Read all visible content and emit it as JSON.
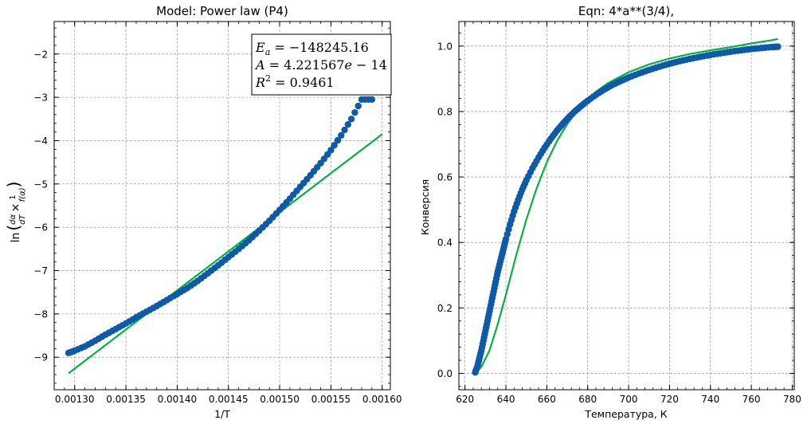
{
  "colors": {
    "points": "#0d5aa7",
    "fit": "#00b341",
    "grid": "#8a8a8a"
  },
  "chart_data": [
    {
      "type": "scatter",
      "title": "Model: Power law (P4)",
      "xlabel": "1/T",
      "ylabel_tex": "ln(dα/dT × 1/f(α))",
      "xlim": [
        0.00128,
        0.001608
      ],
      "ylim": [
        -9.75,
        -1.25
      ],
      "xticks": [
        0.0013,
        0.00135,
        0.0014,
        0.00145,
        0.0015,
        0.00155,
        0.0016
      ],
      "xtick_labels": [
        "0.00130",
        "0.00135",
        "0.00140",
        "0.00145",
        "0.00150",
        "0.00155",
        "0.00160"
      ],
      "yticks": [
        -9,
        -8,
        -7,
        -6,
        -5,
        -4,
        -3,
        -2
      ],
      "ytick_labels": [
        "−9",
        "−8",
        "−7",
        "−6",
        "−5",
        "−4",
        "−3",
        "−2"
      ],
      "grid": true,
      "annotation": {
        "lines": [
          "E_a = −148245.16",
          "A = 4.221567e−14",
          "R^2 = 0.9461"
        ],
        "placement": "top-right"
      },
      "series": [
        {
          "kind": "points",
          "x": [
            0.001294,
            0.0013,
            0.00131,
            0.00132,
            0.00133,
            0.00134,
            0.00135,
            0.00136,
            0.00137,
            0.00138,
            0.00139,
            0.0014,
            0.00141,
            0.00142,
            0.00143,
            0.00144,
            0.00145,
            0.00146,
            0.00147,
            0.00148,
            0.00149,
            0.0015,
            0.00151,
            0.00152,
            0.00153,
            0.00154,
            0.00155,
            0.00156,
            0.00157,
            0.00158,
            0.00159
          ],
          "y": [
            -8.9,
            -8.85,
            -8.75,
            -8.62,
            -8.48,
            -8.35,
            -8.22,
            -8.08,
            -7.95,
            -7.82,
            -7.68,
            -7.54,
            -7.4,
            -7.24,
            -7.06,
            -6.88,
            -6.69,
            -6.5,
            -6.3,
            -6.08,
            -5.85,
            -5.6,
            -5.34,
            -5.07,
            -4.8,
            -4.52,
            -4.22,
            -3.88,
            -3.5,
            -3.05,
            -3.05
          ]
        },
        {
          "kind": "line",
          "x": [
            0.001294,
            0.0016
          ],
          "y": [
            -9.37,
            -3.85
          ]
        }
      ]
    },
    {
      "type": "scatter",
      "title": "Eqn: 4*a**(3/4),",
      "xlabel": "Температура, К",
      "ylabel": "Конверсия",
      "xlim": [
        617,
        781
      ],
      "ylim": [
        -0.05,
        1.075
      ],
      "xticks": [
        620,
        640,
        660,
        680,
        700,
        720,
        740,
        760,
        780
      ],
      "xtick_labels": [
        "620",
        "640",
        "660",
        "680",
        "700",
        "720",
        "740",
        "760",
        "780"
      ],
      "yticks": [
        0.0,
        0.2,
        0.4,
        0.6,
        0.8,
        1.0
      ],
      "ytick_labels": [
        "0.0",
        "0.2",
        "0.4",
        "0.6",
        "0.8",
        "1.0"
      ],
      "grid": true,
      "series": [
        {
          "kind": "points",
          "x": [
            625,
            626,
            627,
            628,
            629,
            630,
            631,
            632,
            633,
            634,
            635,
            636,
            637,
            638,
            639,
            640,
            642,
            644,
            646,
            648,
            650,
            653,
            656,
            659,
            662,
            665,
            668,
            671,
            674,
            677,
            680,
            684,
            688,
            692,
            696,
            700,
            705,
            710,
            715,
            720,
            725,
            730,
            735,
            740,
            745,
            750,
            755,
            760,
            765,
            770,
            773
          ],
          "y": [
            0.003,
            0.02,
            0.045,
            0.07,
            0.1,
            0.13,
            0.16,
            0.19,
            0.22,
            0.25,
            0.28,
            0.31,
            0.335,
            0.36,
            0.385,
            0.41,
            0.455,
            0.495,
            0.53,
            0.562,
            0.59,
            0.627,
            0.66,
            0.69,
            0.717,
            0.742,
            0.764,
            0.784,
            0.802,
            0.818,
            0.833,
            0.851,
            0.867,
            0.881,
            0.893,
            0.904,
            0.916,
            0.927,
            0.937,
            0.946,
            0.954,
            0.961,
            0.967,
            0.973,
            0.978,
            0.983,
            0.987,
            0.991,
            0.994,
            0.997,
            0.998
          ]
        },
        {
          "kind": "line",
          "x": [
            625,
            628,
            632,
            636,
            640,
            645,
            650,
            655,
            660,
            665,
            670,
            675,
            680,
            685,
            690,
            700,
            710,
            720,
            730,
            740,
            750,
            760,
            770,
            773
          ],
          "y": [
            0.0,
            0.02,
            0.07,
            0.15,
            0.24,
            0.36,
            0.47,
            0.565,
            0.645,
            0.71,
            0.762,
            0.804,
            0.838,
            0.865,
            0.887,
            0.92,
            0.944,
            0.962,
            0.976,
            0.987,
            0.997,
            1.008,
            1.018,
            1.022
          ]
        }
      ]
    }
  ]
}
